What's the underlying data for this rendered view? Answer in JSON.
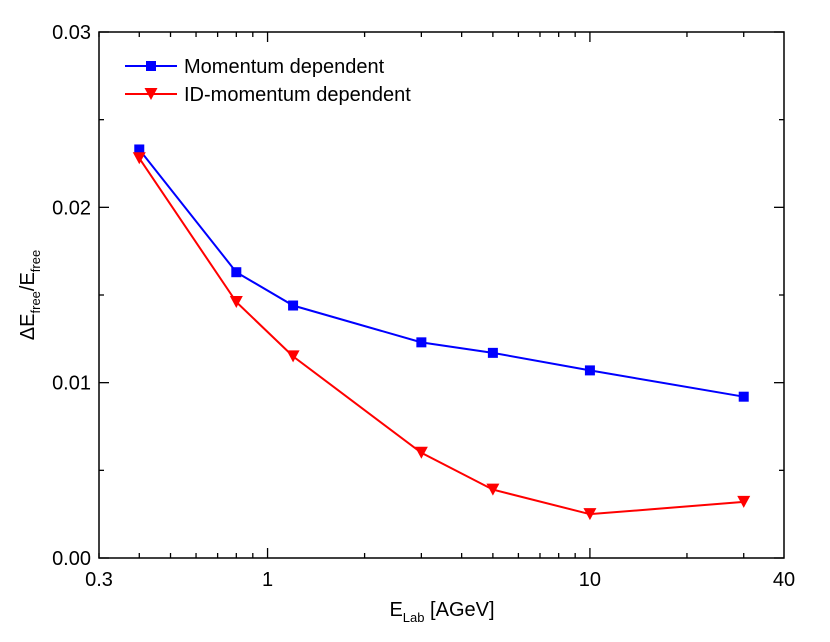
{
  "chart_data": {
    "type": "line",
    "title": "",
    "xlabel": "E",
    "xlabel_sub": "Lab",
    "xlabel_suffix": " [AGeV]",
    "ylabel_parts": [
      "ΔE",
      "free",
      "/E",
      "free"
    ],
    "xscale": "log",
    "xlim": [
      0.3,
      40
    ],
    "ylim": [
      0,
      0.03
    ],
    "x_ticks": [
      0.3,
      1,
      10,
      40
    ],
    "x_tick_labels": [
      "0.3",
      "1",
      "10",
      "40"
    ],
    "y_ticks": [
      0,
      0.01,
      0.02,
      0.03
    ],
    "y_tick_labels": [
      "0.00",
      "0.01",
      "0.02",
      "0.03"
    ],
    "grid": false,
    "legend_position": "top-left",
    "x": [
      0.4,
      0.8,
      1.2,
      3,
      5,
      10,
      30
    ],
    "series": [
      {
        "name": "Momentum dependent",
        "color": "#0000ff",
        "marker": "square",
        "values": [
          0.0233,
          0.0163,
          0.0144,
          0.0123,
          0.0117,
          0.0107,
          0.0092
        ]
      },
      {
        "name": "ID-momentum dependent",
        "color": "#ff0000",
        "marker": "triangle-down",
        "values": [
          0.0228,
          0.0146,
          0.0115,
          0.006,
          0.0039,
          0.0025,
          0.0032
        ]
      }
    ]
  }
}
